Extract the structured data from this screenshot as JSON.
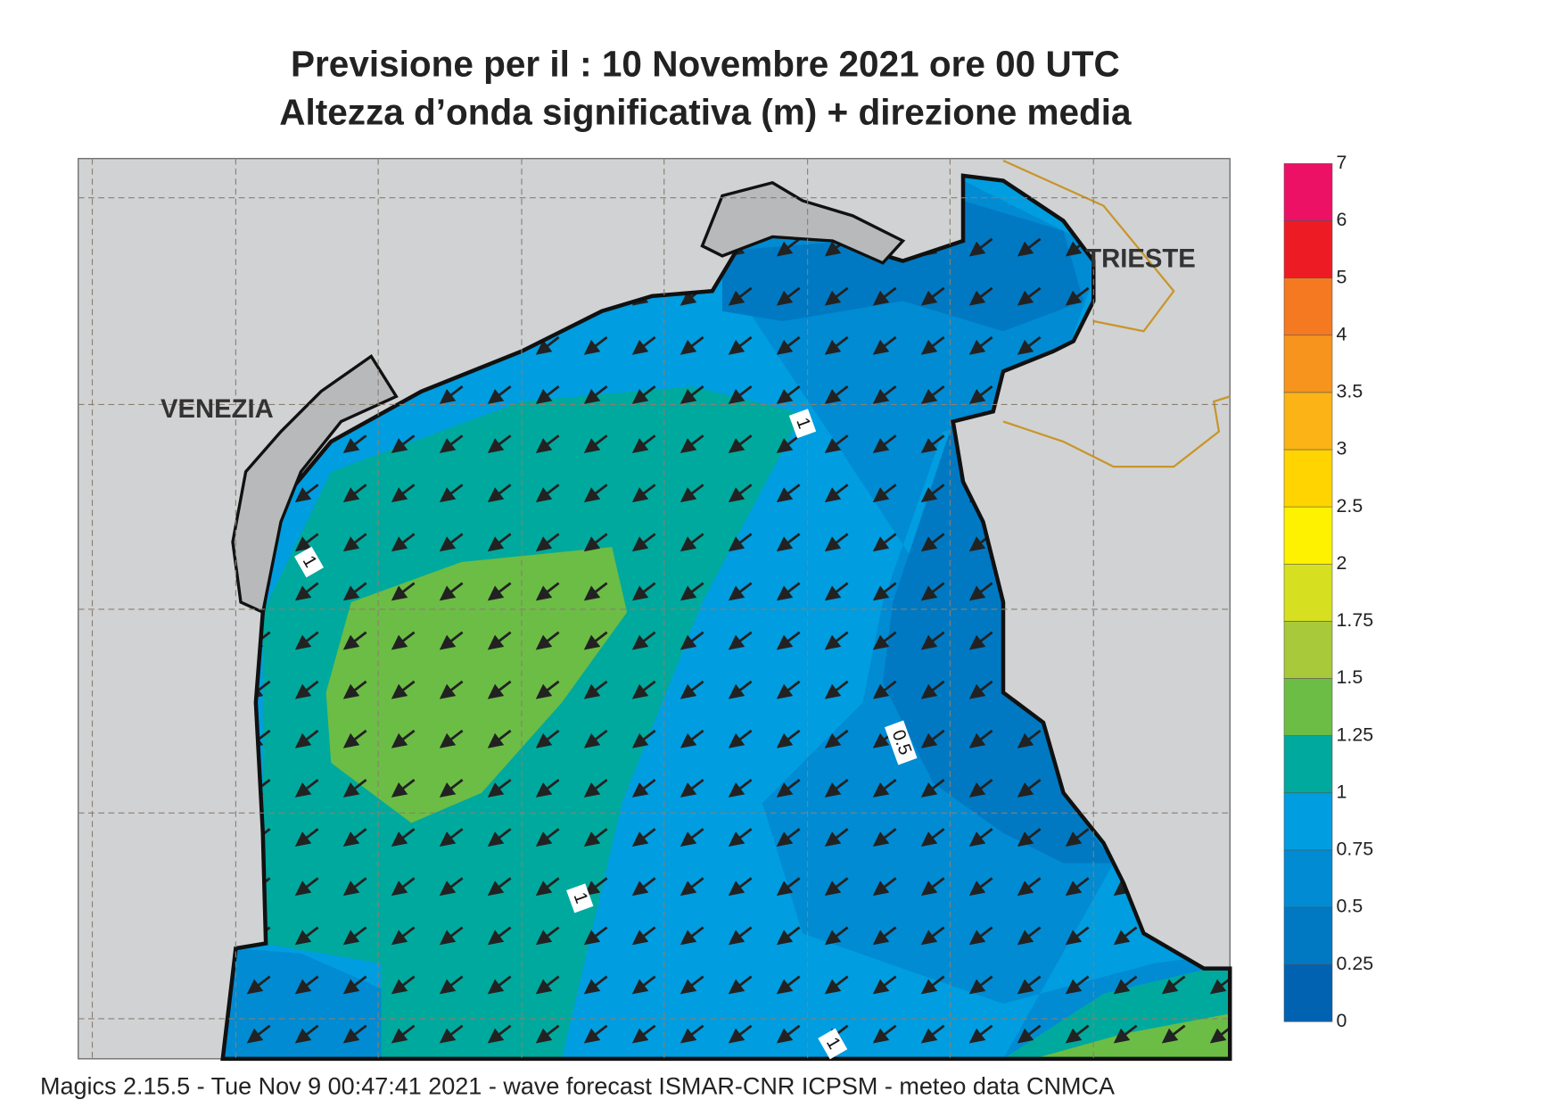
{
  "header": {
    "title": "Previsione per il  :  10 Novembre  2021   ore 00 UTC",
    "subtitle": "Altezza d’onda significativa (m) + direzione media"
  },
  "places": {
    "venezia": "VENEZIA",
    "trieste": "TRIESTE"
  },
  "contour_labels": [
    "1",
    "1",
    "0.5",
    "1",
    "1"
  ],
  "colorbar": {
    "levels": [
      0,
      0.25,
      0.5,
      0.75,
      1,
      1.25,
      1.5,
      1.75,
      2,
      2.5,
      3,
      3.5,
      4,
      5,
      6,
      7
    ],
    "colors": [
      "#0062b1",
      "#0079c2",
      "#008bd3",
      "#009de0",
      "#00a99d",
      "#6cbd45",
      "#a8c93a",
      "#d6e021",
      "#fff200",
      "#ffd400",
      "#fbb316",
      "#f7941d",
      "#f47920",
      "#ed1c24",
      "#ec1165"
    ]
  },
  "footer": "Magics 2.15.5 - Tue Nov  9 00:47:41 2021 - wave forecast  ISMAR-CNR  ICPSM - meteo data   CNMCA"
}
